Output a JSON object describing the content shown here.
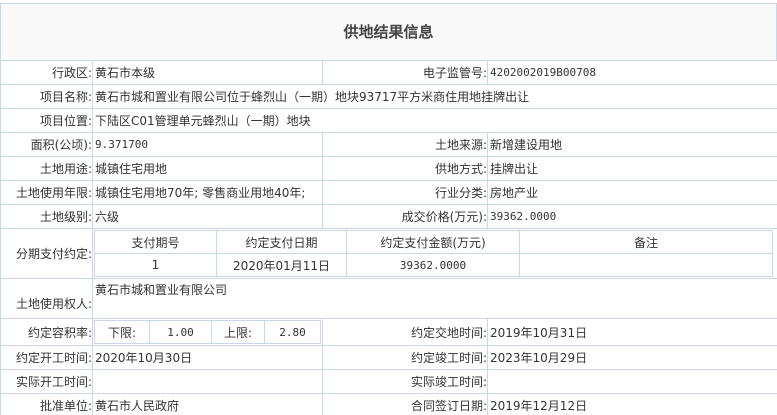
{
  "title": "供地结果信息",
  "fields": {
    "xzq": {
      "label": "行政区:",
      "value": "黄石市本级"
    },
    "dzjgh": {
      "label": "电子监管号:",
      "value": "4202002019B00708"
    },
    "xmmc": {
      "label": "项目名称:",
      "value": "黄石市城和置业有限公司位于蜂烈山（一期）地块93717平方米商住用地挂牌出让"
    },
    "xmwz": {
      "label": "项目位置:",
      "value": "下陆区C01管理单元蜂烈山（一期）地块"
    },
    "mj": {
      "label": "面积(公顷):",
      "value": "9.371700"
    },
    "tdly": {
      "label": "土地来源:",
      "value": "新增建设用地"
    },
    "tdyt": {
      "label": "土地用途:",
      "value": "城镇住宅用地"
    },
    "gdfs": {
      "label": "供地方式:",
      "value": "挂牌出让"
    },
    "synx": {
      "label": "土地使用年限:",
      "value": "城镇住宅用地70年; 零售商业用地40年;"
    },
    "hyfl": {
      "label": "行业分类:",
      "value": "房地产业"
    },
    "tdjb": {
      "label": "土地级别:",
      "value": "六级"
    },
    "cjjg": {
      "label": "成交价格(万元):",
      "value": "39362.0000"
    },
    "fqzf": {
      "label": "分期支付约定:"
    },
    "syqr": {
      "label": "土地使用权人:",
      "value": "黄石市城和置业有限公司"
    },
    "rjl": {
      "label": "约定容积率:",
      "lower_label": "下限:",
      "lower": "1.00",
      "upper_label": "上限:",
      "upper": "2.80"
    },
    "jdsj": {
      "label": "约定交地时间:",
      "value": "2019年10月31日"
    },
    "kgsj": {
      "label": "约定开工时间:",
      "value": "2020年10月30日"
    },
    "jgsj": {
      "label": "约定竣工时间:",
      "value": "2023年10月29日"
    },
    "sjkg": {
      "label": "实际开工时间:",
      "value": ""
    },
    "sjjg": {
      "label": "实际竣工时间:",
      "value": ""
    },
    "pzdw": {
      "label": "批准单位:",
      "value": "黄石市人民政府"
    },
    "htqd": {
      "label": "合同签订日期:",
      "value": "2019年12月12日"
    }
  },
  "installments": {
    "headers": [
      "支付期号",
      "约定支付日期",
      "约定支付金额(万元)",
      "备注"
    ],
    "rows": [
      [
        "1",
        "2020年01月11日",
        "39362.0000",
        ""
      ]
    ]
  }
}
